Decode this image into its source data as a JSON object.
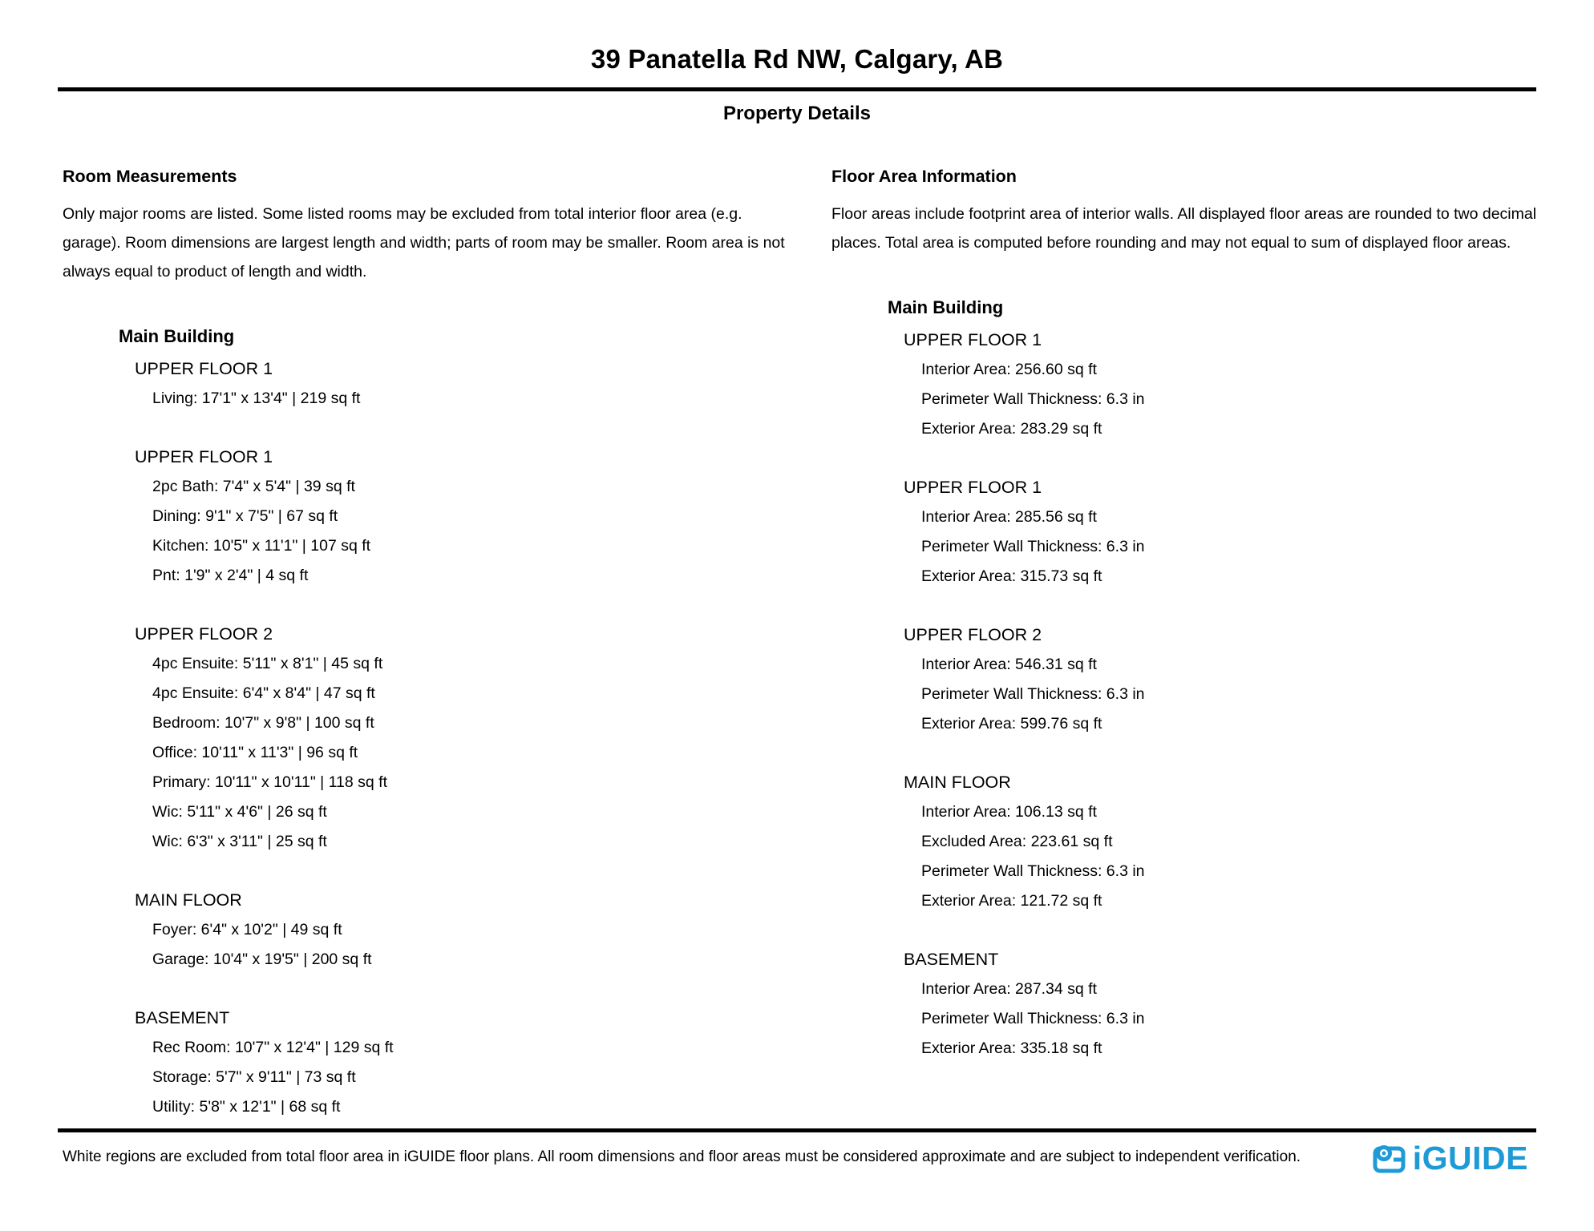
{
  "page": {
    "title": "39 Panatella Rd NW, Calgary, AB",
    "subtitle": "Property Details"
  },
  "room_measurements": {
    "heading": "Room Measurements",
    "description": "Only major rooms are listed. Some listed rooms may be excluded from total interior floor area (e.g. garage). Room dimensions are largest length and width; parts of room may be smaller. Room area is not always equal to product of length and width.",
    "building": {
      "name": "Main Building",
      "sections": [
        {
          "floor": "UPPER FLOOR 1",
          "lines": [
            "Living: 17'1\" x 13'4\" | 219 sq ft"
          ]
        },
        {
          "floor": "UPPER FLOOR 1",
          "lines": [
            "2pc Bath: 7'4\" x 5'4\" | 39 sq ft",
            "Dining: 9'1\" x 7'5\" | 67 sq ft",
            "Kitchen: 10'5\" x 11'1\" | 107 sq ft",
            "Pnt: 1'9\" x 2'4\" | 4 sq ft"
          ]
        },
        {
          "floor": "UPPER FLOOR 2",
          "lines": [
            "4pc Ensuite: 5'11\" x 8'1\" | 45 sq ft",
            "4pc Ensuite: 6'4\" x 8'4\" | 47 sq ft",
            "Bedroom: 10'7\" x 9'8\" | 100 sq ft",
            "Office: 10'11\" x 11'3\" | 96 sq ft",
            "Primary: 10'11\" x 10'11\" | 118 sq ft",
            "Wic: 5'11\" x 4'6\" | 26 sq ft",
            "Wic: 6'3\" x 3'11\" | 25 sq ft"
          ]
        },
        {
          "floor": "MAIN FLOOR",
          "lines": [
            "Foyer: 6'4\" x 10'2\" | 49 sq ft",
            "Garage: 10'4\" x 19'5\" | 200 sq ft"
          ]
        },
        {
          "floor": "BASEMENT",
          "lines": [
            "Rec Room: 10'7\" x 12'4\" | 129 sq ft",
            "Storage: 5'7\" x 9'11\" | 73 sq ft",
            "Utility: 5'8\" x 12'1\" | 68 sq ft"
          ]
        }
      ]
    }
  },
  "floor_area_information": {
    "heading": "Floor Area Information",
    "description": "Floor areas include footprint area of interior walls. All displayed floor areas are rounded to two decimal places. Total area is computed before rounding and may not equal to sum of displayed floor areas.",
    "building": {
      "name": "Main Building",
      "sections": [
        {
          "floor": "UPPER FLOOR 1",
          "lines": [
            "Interior Area: 256.60 sq ft",
            "Perimeter Wall Thickness: 6.3 in",
            "Exterior Area: 283.29 sq ft"
          ]
        },
        {
          "floor": "UPPER FLOOR 1",
          "lines": [
            "Interior Area: 285.56 sq ft",
            "Perimeter Wall Thickness: 6.3 in",
            "Exterior Area: 315.73 sq ft"
          ]
        },
        {
          "floor": "UPPER FLOOR 2",
          "lines": [
            "Interior Area: 546.31 sq ft",
            "Perimeter Wall Thickness: 6.3 in",
            "Exterior Area: 599.76 sq ft"
          ]
        },
        {
          "floor": "MAIN FLOOR",
          "lines": [
            "Interior Area: 106.13 sq ft",
            "Excluded Area: 223.61 sq ft",
            "Perimeter Wall Thickness: 6.3 in",
            "Exterior Area: 121.72 sq ft"
          ]
        },
        {
          "floor": "BASEMENT",
          "lines": [
            "Interior Area: 287.34 sq ft",
            "Perimeter Wall Thickness: 6.3 in",
            "Exterior Area: 335.18 sq ft"
          ]
        }
      ]
    }
  },
  "footer": {
    "disclaimer": "White regions are excluded from total floor area in iGUIDE floor plans. All room dimensions and floor areas must be considered approximate and are subject to independent verification.",
    "logo_text": "iGUIDE",
    "brand_color": "#1E9BD6"
  }
}
